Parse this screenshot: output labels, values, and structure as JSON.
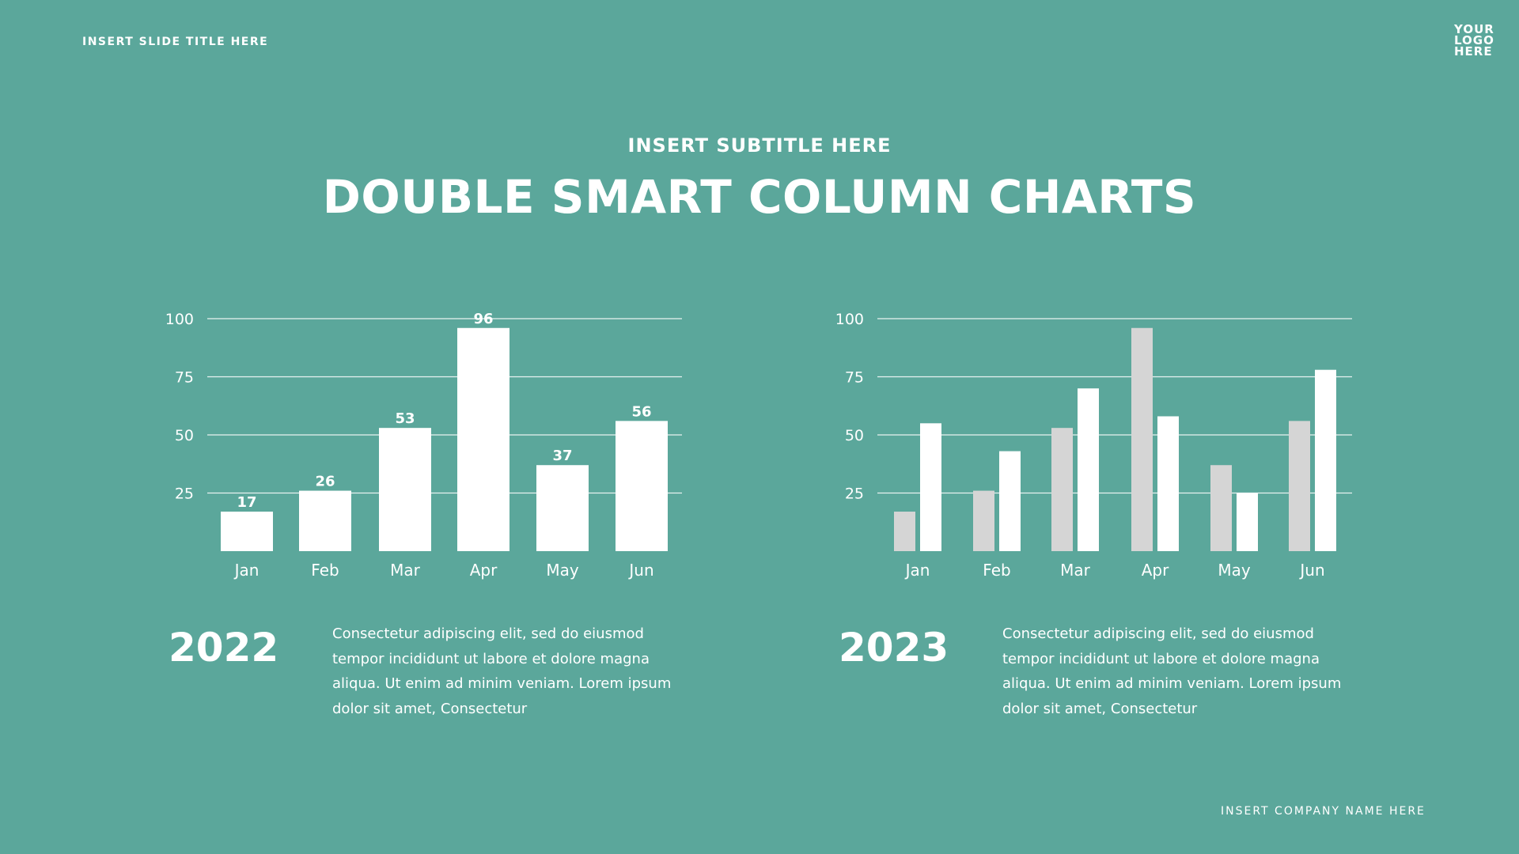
{
  "header": {
    "slide_title": "INSERT SLIDE TITLE HERE",
    "logo": "YOUR LOGO HERE",
    "subtitle": "INSERT SUBTITLE HERE",
    "title": "DOUBLE SMART COLUMN CHARTS"
  },
  "chart_data": [
    {
      "type": "bar",
      "title": "2022",
      "categories": [
        "Jan",
        "Feb",
        "Mar",
        "Apr",
        "May",
        "Jun"
      ],
      "values": [
        17,
        26,
        53,
        96,
        37,
        56
      ],
      "yticks": [
        25,
        50,
        75,
        100
      ],
      "ylim": [
        0,
        100
      ],
      "data_labels": true,
      "color": "#ffffff",
      "grid": true
    },
    {
      "type": "bar",
      "title": "2023",
      "categories": [
        "Jan",
        "Feb",
        "Mar",
        "Apr",
        "May",
        "Jun"
      ],
      "series": [
        {
          "name": "2022",
          "values": [
            17,
            26,
            53,
            96,
            37,
            56
          ],
          "color": "#d5d5d5"
        },
        {
          "name": "2023",
          "values": [
            55,
            43,
            70,
            58,
            25,
            78
          ],
          "color": "#ffffff"
        }
      ],
      "yticks": [
        25,
        50,
        75,
        100
      ],
      "ylim": [
        0,
        100
      ],
      "grid": true
    }
  ],
  "sections": [
    {
      "year": "2022",
      "text": "Consectetur adipiscing elit, sed do eiusmod tempor incididunt ut labore et dolore magna aliqua. Ut enim ad minim veniam. Lorem ipsum dolor sit amet, Consectetur"
    },
    {
      "year": "2023",
      "text": "Consectetur adipiscing elit, sed do eiusmod tempor incididunt ut labore et dolore magna aliqua. Ut enim ad minim veniam. Lorem ipsum dolor sit amet, Consectetur"
    }
  ],
  "footer": {
    "company": "INSERT COMPANY NAME HERE"
  }
}
